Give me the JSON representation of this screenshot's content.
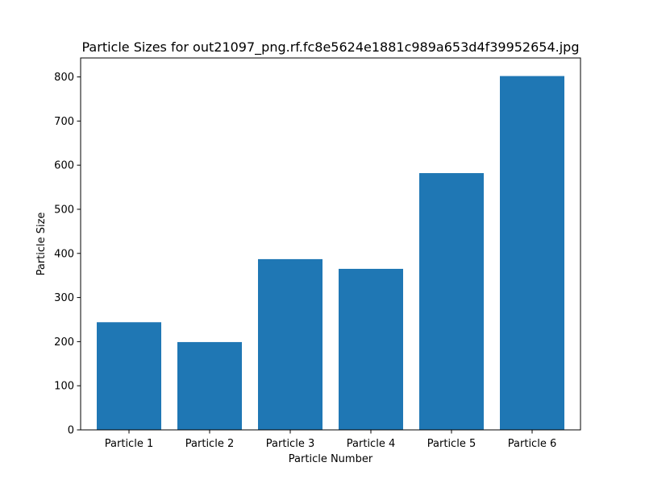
{
  "chart_data": {
    "type": "bar",
    "title": "Particle Sizes for out21097_png.rf.fc8e5624e1881c989a653d4f39952654.jpg",
    "xlabel": "Particle Number",
    "ylabel": "Particle Size",
    "categories": [
      "Particle 1",
      "Particle 2",
      "Particle 3",
      "Particle 4",
      "Particle 5",
      "Particle 6"
    ],
    "values": [
      244,
      199,
      387,
      365,
      582,
      802
    ],
    "ylim": [
      0,
      843
    ],
    "yticks": [
      0,
      100,
      200,
      300,
      400,
      500,
      600,
      700,
      800
    ],
    "grid": false,
    "legend": "none",
    "bar_color": "#1f77b4"
  }
}
